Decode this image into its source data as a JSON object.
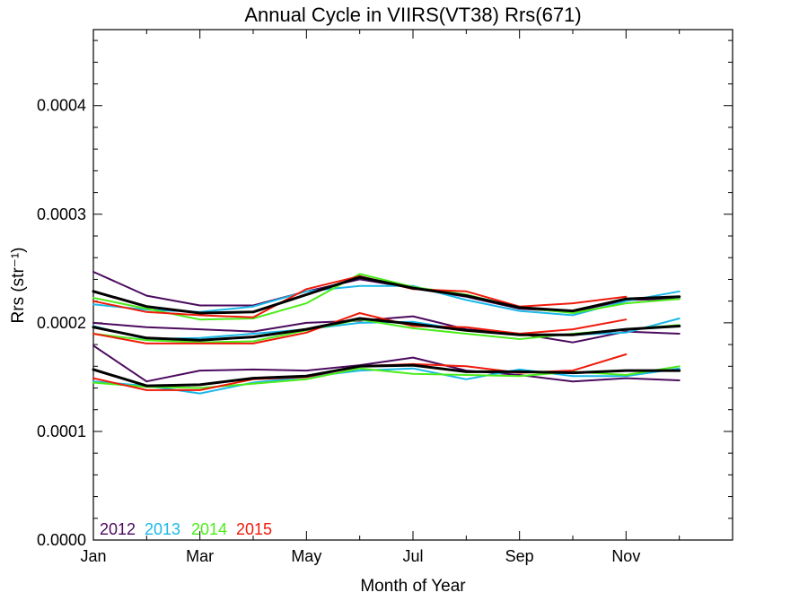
{
  "chart_data": {
    "type": "line",
    "title": "Annual Cycle in VIIRS(VT38) Rrs(671)",
    "xlabel": "Month of Year",
    "ylabel": "Rrs (str⁻¹)",
    "ylim": [
      0,
      0.00047
    ],
    "xlim": [
      1,
      13
    ],
    "x_ticks": [
      1,
      3,
      5,
      7,
      9,
      11
    ],
    "x_tick_labels": [
      "Jan",
      "Mar",
      "May",
      "Jul",
      "Sep",
      "Nov"
    ],
    "y_ticks": [
      0,
      0.0001,
      0.0002,
      0.0003,
      0.0004
    ],
    "y_tick_labels": [
      "0.0000",
      "0.0001",
      "0.0002",
      "0.0003",
      "0.0004"
    ],
    "legend_position": "bottom-left",
    "legend": [
      {
        "label": "2012",
        "color": "#4b0a5e"
      },
      {
        "label": "2013",
        "color": "#1ab8e8"
      },
      {
        "label": "2014",
        "color": "#4cec1a"
      },
      {
        "label": "2015",
        "color": "#f01a0a"
      }
    ],
    "series": [
      {
        "year": "2012",
        "band": "upper",
        "color": "#4b0a5e",
        "width": 2,
        "x": [
          1,
          2,
          3,
          4,
          5,
          6,
          7,
          8,
          9,
          10,
          11,
          12
        ],
        "y": [
          0.000247,
          0.000225,
          0.000216,
          0.000216,
          0.000229,
          0.00024,
          0.000232,
          0.000224,
          0.000213,
          0.00021,
          0.000221,
          0.000222
        ]
      },
      {
        "year": "2012",
        "band": "middle",
        "color": "#4b0a5e",
        "width": 2,
        "x": [
          1,
          2,
          3,
          4,
          5,
          6,
          7,
          8,
          9,
          10,
          11,
          12
        ],
        "y": [
          0.0002,
          0.000196,
          0.000194,
          0.000192,
          0.0002,
          0.000202,
          0.000206,
          0.000194,
          0.00019,
          0.000182,
          0.000192,
          0.00019
        ]
      },
      {
        "year": "2012",
        "band": "lower",
        "color": "#4b0a5e",
        "width": 2,
        "x": [
          1,
          2,
          3,
          4,
          5,
          6,
          7,
          8,
          9,
          10,
          11,
          12
        ],
        "y": [
          0.000179,
          0.000146,
          0.000156,
          0.000157,
          0.000156,
          0.000161,
          0.000168,
          0.000156,
          0.000152,
          0.000146,
          0.000149,
          0.000147
        ]
      },
      {
        "year": "2013",
        "band": "upper",
        "color": "#1ab8e8",
        "width": 2,
        "x": [
          1,
          2,
          3,
          4,
          5,
          6,
          7,
          8,
          9,
          10,
          11,
          12
        ],
        "y": [
          0.000217,
          0.000212,
          0.00021,
          0.000215,
          0.000229,
          0.000234,
          0.000234,
          0.000221,
          0.000211,
          0.000207,
          0.00022,
          0.000229
        ]
      },
      {
        "year": "2013",
        "band": "middle",
        "color": "#1ab8e8",
        "width": 2,
        "x": [
          1,
          2,
          3,
          4,
          5,
          6,
          7,
          8,
          9,
          10,
          11,
          12
        ],
        "y": [
          0.000197,
          0.000185,
          0.000186,
          0.00019,
          0.000194,
          0.0002,
          0.000201,
          0.000193,
          0.000189,
          0.000189,
          0.000191,
          0.000204
        ]
      },
      {
        "year": "2013",
        "band": "lower",
        "color": "#1ab8e8",
        "width": 2,
        "x": [
          1,
          2,
          3,
          4,
          5,
          6,
          7,
          8,
          9,
          10,
          11,
          12
        ],
        "y": [
          0.000146,
          0.000142,
          0.000135,
          0.000145,
          0.00015,
          0.000156,
          0.000158,
          0.000148,
          0.000157,
          0.000151,
          0.000151,
          0.000158
        ]
      },
      {
        "year": "2014",
        "band": "upper",
        "color": "#4cec1a",
        "width": 2,
        "x": [
          1,
          2,
          3,
          4,
          5,
          6,
          7,
          8,
          9,
          10,
          11,
          12
        ],
        "y": [
          0.000223,
          0.000213,
          0.000203,
          0.000204,
          0.000218,
          0.000245,
          0.000233,
          0.000226,
          0.000214,
          0.000209,
          0.000218,
          0.000222
        ]
      },
      {
        "year": "2014",
        "band": "middle",
        "color": "#4cec1a",
        "width": 2,
        "x": [
          1,
          2,
          3,
          4,
          5,
          6,
          7,
          8,
          9,
          10,
          11,
          12
        ],
        "y": [
          0.00019,
          0.000184,
          0.000182,
          0.000183,
          0.000193,
          0.000203,
          0.000195,
          0.00019,
          0.000185,
          0.00019,
          0.000194,
          0.000198
        ]
      },
      {
        "year": "2014",
        "band": "lower",
        "color": "#4cec1a",
        "width": 2,
        "x": [
          1,
          2,
          3,
          4,
          5,
          6,
          7,
          8,
          9,
          10,
          11,
          12
        ],
        "y": [
          0.000145,
          0.000141,
          0.00014,
          0.000144,
          0.000148,
          0.000158,
          0.000153,
          0.000152,
          0.000151,
          0.000155,
          0.000152,
          0.00016
        ]
      },
      {
        "year": "2015",
        "band": "upper",
        "color": "#f01a0a",
        "width": 2,
        "x": [
          1,
          2,
          3,
          4,
          5,
          6,
          7,
          8,
          9,
          10,
          11
        ],
        "y": [
          0.00022,
          0.00021,
          0.000207,
          0.000205,
          0.000231,
          0.000243,
          0.000231,
          0.000229,
          0.000215,
          0.000218,
          0.000224
        ]
      },
      {
        "year": "2015",
        "band": "middle",
        "color": "#f01a0a",
        "width": 2,
        "x": [
          1,
          2,
          3,
          4,
          5,
          6,
          7,
          8,
          9,
          10,
          11
        ],
        "y": [
          0.00019,
          0.000181,
          0.000181,
          0.000181,
          0.000191,
          0.000209,
          0.000197,
          0.000196,
          0.00019,
          0.000194,
          0.000203
        ]
      },
      {
        "year": "2015",
        "band": "lower",
        "color": "#f01a0a",
        "width": 2,
        "x": [
          1,
          2,
          3,
          4,
          5,
          6,
          7,
          8,
          9,
          10,
          11
        ],
        "y": [
          0.000149,
          0.000138,
          0.000138,
          0.000148,
          0.00015,
          0.00016,
          0.000162,
          0.00016,
          0.000154,
          0.000156,
          0.000171
        ]
      },
      {
        "year": "",
        "band": "upper",
        "color": "#000000",
        "width": 3,
        "x": [
          1,
          2,
          3,
          4,
          5,
          6,
          7,
          8,
          9,
          10,
          11,
          12
        ],
        "y": [
          0.000229,
          0.000215,
          0.000209,
          0.00021,
          0.000226,
          0.000242,
          0.000232,
          0.000225,
          0.000214,
          0.000211,
          0.000222,
          0.000224
        ]
      },
      {
        "year": "",
        "band": "middle",
        "color": "#000000",
        "width": 3,
        "x": [
          1,
          2,
          3,
          4,
          5,
          6,
          7,
          8,
          9,
          10,
          11,
          12
        ],
        "y": [
          0.000196,
          0.000186,
          0.000184,
          0.000187,
          0.000194,
          0.000204,
          0.000199,
          0.000193,
          0.000189,
          0.000189,
          0.000194,
          0.000197
        ]
      },
      {
        "year": "",
        "band": "lower",
        "color": "#000000",
        "width": 3,
        "x": [
          1,
          2,
          3,
          4,
          5,
          6,
          7,
          8,
          9,
          10,
          11,
          12
        ],
        "y": [
          0.000157,
          0.000142,
          0.000143,
          0.000149,
          0.000151,
          0.00016,
          0.000161,
          0.000155,
          0.000155,
          0.000154,
          0.000156,
          0.000156
        ]
      }
    ]
  }
}
